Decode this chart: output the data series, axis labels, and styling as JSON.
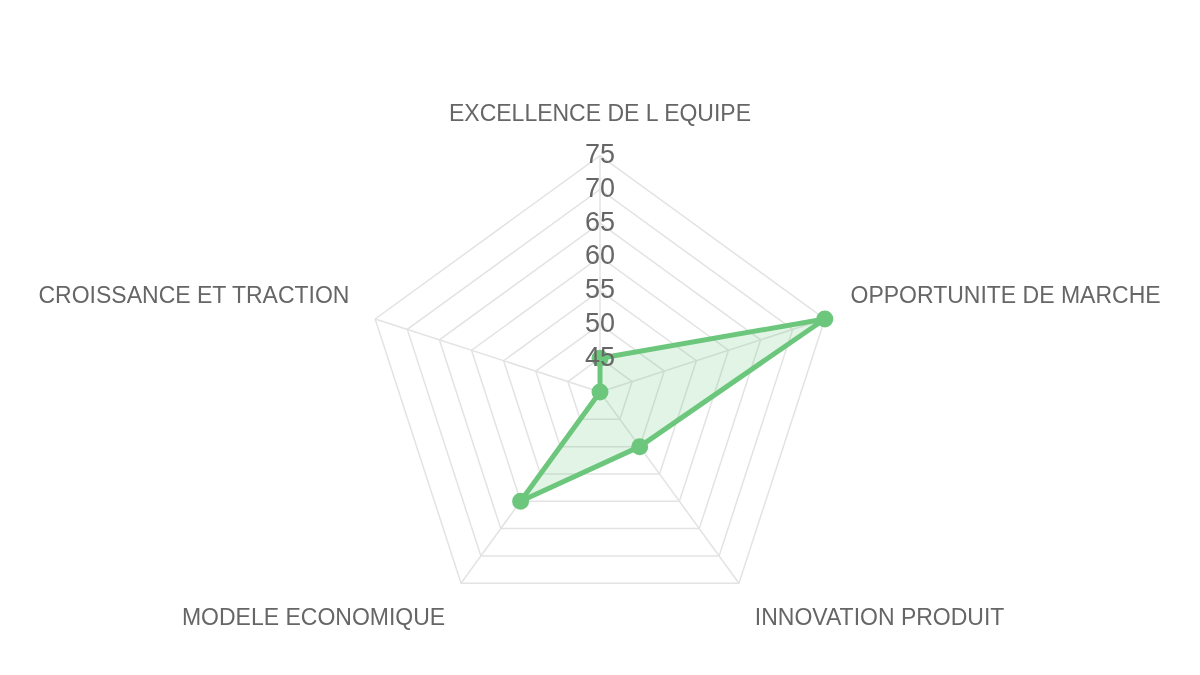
{
  "chart_data": {
    "type": "radar",
    "categories": [
      "EXCELLENCE DE L EQUIPE",
      "OPPORTUNITE DE MARCHE",
      "INNOVATION PRODUIT",
      "MODELE ECONOMIQUE",
      "CROISSANCE ET TRACTION"
    ],
    "series": [
      {
        "color": "#6cc77d",
        "values": [
          45,
          75,
          50,
          60,
          40
        ]
      }
    ],
    "ylim": [
      40,
      75
    ],
    "yticks": [
      45,
      50,
      55,
      60,
      65,
      70,
      75
    ],
    "grid": true,
    "marker": "circle"
  }
}
